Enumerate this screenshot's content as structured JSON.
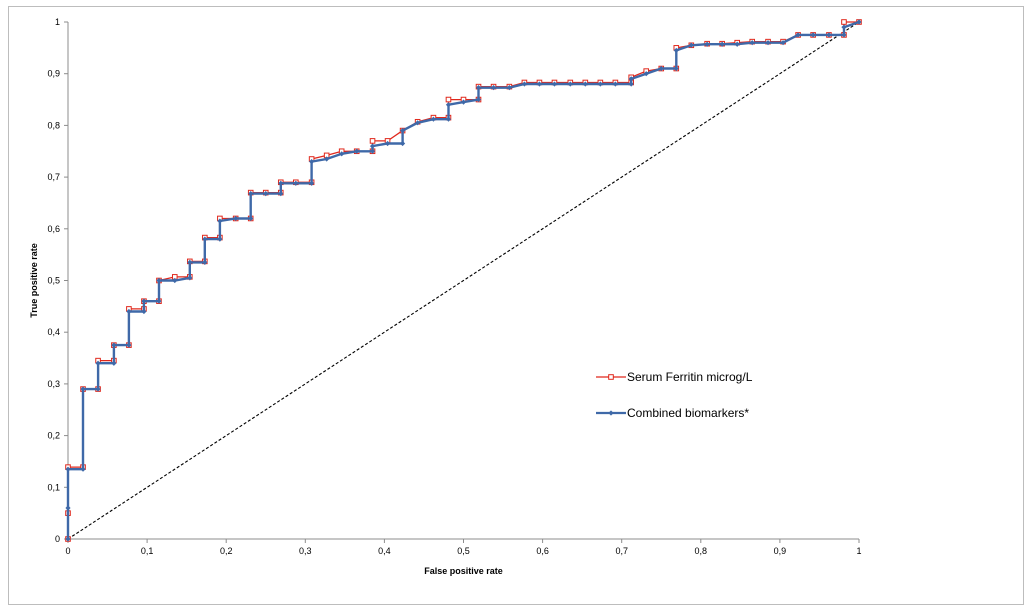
{
  "chart_data": {
    "type": "line",
    "xlabel": "False positive rate",
    "ylabel": "True positive rate",
    "xlim": [
      0,
      1
    ],
    "ylim": [
      0,
      1
    ],
    "x_ticks": [
      "0",
      "0,1",
      "0,2",
      "0,3",
      "0,4",
      "0,5",
      "0,6",
      "0,7",
      "0,8",
      "0,9",
      "1"
    ],
    "y_ticks": [
      "0",
      "0,1",
      "0,2",
      "0,3",
      "0,4",
      "0,5",
      "0,6",
      "0,7",
      "0,8",
      "0,9",
      "1"
    ],
    "grid": false,
    "legend_position": "middle-right",
    "series": [
      {
        "name": "Serum Ferritin microg/L",
        "color": "#e0281c",
        "marker": "square-open",
        "x": [
          0,
          0,
          0,
          0.019,
          0.019,
          0.038,
          0.038,
          0.058,
          0.058,
          0.077,
          0.077,
          0.096,
          0.096,
          0.115,
          0.115,
          0.135,
          0.154,
          0.154,
          0.173,
          0.173,
          0.192,
          0.192,
          0.212,
          0.231,
          0.231,
          0.25,
          0.269,
          0.269,
          0.288,
          0.308,
          0.308,
          0.327,
          0.346,
          0.365,
          0.385,
          0.385,
          0.404,
          0.423,
          0.442,
          0.462,
          0.481,
          0.481,
          0.5,
          0.519,
          0.519,
          0.538,
          0.558,
          0.577,
          0.596,
          0.615,
          0.635,
          0.654,
          0.673,
          0.692,
          0.712,
          0.712,
          0.731,
          0.75,
          0.769,
          0.769,
          0.788,
          0.808,
          0.827,
          0.846,
          0.865,
          0.885,
          0.904,
          0.923,
          0.942,
          0.962,
          0.981,
          0.981,
          1
        ],
        "y": [
          0,
          0.05,
          0.139,
          0.139,
          0.29,
          0.29,
          0.345,
          0.345,
          0.375,
          0.375,
          0.445,
          0.445,
          0.46,
          0.46,
          0.5,
          0.507,
          0.507,
          0.537,
          0.537,
          0.583,
          0.583,
          0.62,
          0.62,
          0.62,
          0.67,
          0.67,
          0.67,
          0.69,
          0.69,
          0.69,
          0.735,
          0.742,
          0.75,
          0.75,
          0.75,
          0.77,
          0.77,
          0.79,
          0.807,
          0.815,
          0.815,
          0.85,
          0.85,
          0.85,
          0.875,
          0.875,
          0.875,
          0.883,
          0.883,
          0.883,
          0.883,
          0.883,
          0.883,
          0.883,
          0.883,
          0.893,
          0.905,
          0.91,
          0.91,
          0.95,
          0.955,
          0.958,
          0.958,
          0.96,
          0.962,
          0.962,
          0.962,
          0.975,
          0.975,
          0.975,
          0.975,
          1,
          1
        ]
      },
      {
        "name": "Combined biomarkers*",
        "color": "#3f69a8",
        "marker": "diamond",
        "x": [
          0,
          0,
          0,
          0.019,
          0.019,
          0.038,
          0.038,
          0.058,
          0.058,
          0.077,
          0.077,
          0.096,
          0.096,
          0.115,
          0.115,
          0.135,
          0.154,
          0.154,
          0.173,
          0.173,
          0.192,
          0.192,
          0.212,
          0.231,
          0.231,
          0.25,
          0.269,
          0.269,
          0.288,
          0.308,
          0.308,
          0.327,
          0.346,
          0.365,
          0.385,
          0.385,
          0.404,
          0.423,
          0.423,
          0.442,
          0.462,
          0.481,
          0.481,
          0.5,
          0.519,
          0.519,
          0.538,
          0.558,
          0.577,
          0.596,
          0.615,
          0.635,
          0.654,
          0.673,
          0.692,
          0.712,
          0.712,
          0.731,
          0.75,
          0.769,
          0.769,
          0.788,
          0.808,
          0.827,
          0.846,
          0.865,
          0.885,
          0.904,
          0.923,
          0.942,
          0.962,
          0.981,
          0.981,
          1
        ],
        "y": [
          0,
          0.06,
          0.135,
          0.135,
          0.29,
          0.29,
          0.34,
          0.34,
          0.375,
          0.375,
          0.44,
          0.44,
          0.46,
          0.46,
          0.5,
          0.5,
          0.505,
          0.535,
          0.535,
          0.58,
          0.58,
          0.615,
          0.62,
          0.62,
          0.668,
          0.668,
          0.668,
          0.688,
          0.688,
          0.688,
          0.73,
          0.735,
          0.745,
          0.75,
          0.75,
          0.76,
          0.765,
          0.765,
          0.79,
          0.805,
          0.812,
          0.812,
          0.84,
          0.845,
          0.85,
          0.873,
          0.873,
          0.873,
          0.88,
          0.88,
          0.88,
          0.88,
          0.88,
          0.88,
          0.88,
          0.88,
          0.89,
          0.9,
          0.91,
          0.91,
          0.945,
          0.955,
          0.957,
          0.957,
          0.957,
          0.96,
          0.96,
          0.96,
          0.975,
          0.975,
          0.975,
          0.975,
          0.99,
          1
        ]
      },
      {
        "name": "",
        "color": "#000000",
        "style": "dashed",
        "x": [
          0,
          1
        ],
        "y": [
          0,
          1
        ]
      }
    ]
  }
}
